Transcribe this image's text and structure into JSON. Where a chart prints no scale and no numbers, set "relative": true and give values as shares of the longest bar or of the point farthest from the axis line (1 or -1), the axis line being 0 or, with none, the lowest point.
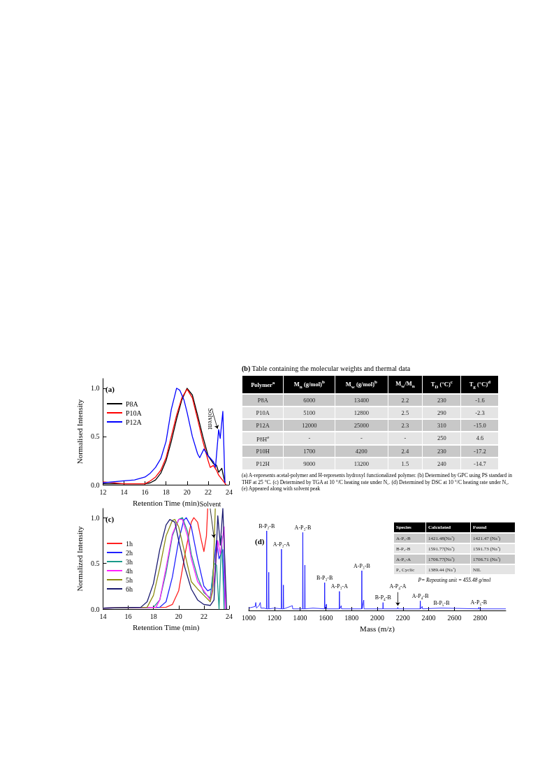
{
  "chart_data": [
    {
      "type": "line",
      "title": "(a)",
      "xlabel": "Retention Time (min)",
      "ylabel": "Normalised Intensity",
      "xlim": [
        12,
        24
      ],
      "xticks": [
        12,
        14,
        16,
        18,
        20,
        22,
        24
      ],
      "ylim": [
        0,
        1.1
      ],
      "yticks": [
        {
          "value": 0,
          "label": "0.0"
        },
        {
          "value": 0.5,
          "label": "0.5"
        },
        {
          "value": 1,
          "label": "1.0"
        }
      ],
      "legend": "top left",
      "marker": "none",
      "series": [
        {
          "name": "P8A",
          "color": "#000000",
          "x": [
            12,
            14,
            16,
            16.5,
            17,
            17.5,
            18,
            18.5,
            19,
            19.5,
            20,
            20.5,
            21,
            21.5,
            22,
            22.5,
            22.8,
            23,
            23.3,
            23.6
          ],
          "values": [
            0.01,
            0.01,
            0.01,
            0.02,
            0.05,
            0.12,
            0.25,
            0.45,
            0.68,
            0.88,
            1.0,
            0.93,
            0.72,
            0.5,
            0.3,
            0.22,
            0.2,
            0.13,
            0.17,
            0.02
          ]
        },
        {
          "name": "P10A",
          "color": "#ff0000",
          "x": [
            12,
            14,
            16,
            16.5,
            17,
            17.5,
            18,
            18.5,
            19,
            19.5,
            20,
            20.5,
            21,
            21.5,
            22,
            22.2,
            22.5,
            22.8,
            23,
            23.5,
            23.7
          ],
          "values": [
            0.03,
            0.01,
            0.01,
            0.04,
            0.08,
            0.15,
            0.28,
            0.5,
            0.72,
            0.9,
            0.99,
            0.9,
            0.68,
            0.45,
            0.25,
            0.18,
            0.2,
            0.15,
            0.1,
            0.03,
            0
          ]
        },
        {
          "name": "P12A",
          "color": "#0000ff",
          "x": [
            12,
            14,
            15,
            16,
            16.5,
            17,
            17.5,
            18,
            18.5,
            19,
            19.3,
            19.7,
            20,
            20.5,
            21,
            21.2,
            21.6,
            22,
            22.5,
            22.7,
            23,
            23.15,
            23.4,
            23.6
          ],
          "values": [
            0.02,
            0.04,
            0.05,
            0.08,
            0.12,
            0.18,
            0.27,
            0.45,
            0.78,
            1.0,
            0.98,
            0.88,
            0.75,
            0.5,
            0.32,
            0.28,
            0.37,
            0.3,
            0.24,
            0.18,
            0.57,
            0.48,
            0.76,
            0.02
          ]
        }
      ],
      "annotations": [
        {
          "text": "Solvent",
          "x": 22.9,
          "y": 0.58
        }
      ]
    },
    {
      "type": "other",
      "title": "(b) Table containing the molecular weights and thermal data",
      "categories": [
        "Polymer$^{a}$",
        "M$_{n}$ (g/mol)$^{b}$",
        "M$_{w}$ (g/mol)$^{b}$",
        "M$_{w}$/M$_{n}$",
        "T$_{D}$ (°C)$^{c}$",
        "T$_{g}$ (°C)$^{d}$"
      ],
      "cell_labels": [
        [
          "P8A",
          "6000",
          "13400",
          "2.2",
          "230",
          "-1.6"
        ],
        [
          "P10A",
          "5100",
          "12800",
          "2.5",
          "290",
          "-2.3"
        ],
        [
          "P12A",
          "12000",
          "25000",
          "2.3",
          "310",
          "-15.0"
        ],
        [
          "P8H$^{e}$",
          "-",
          "-",
          "-",
          "250",
          "4.6"
        ],
        [
          "P10H",
          "1700",
          "4200",
          "2.4",
          "230",
          "-17.2"
        ],
        [
          "P12H",
          "9000",
          "13200",
          "1.5",
          "240",
          "-14.7"
        ]
      ],
      "annotations": [
        "(a) A-represents acetal-polymer and H-represents hydroxyl functionalized polymer. (b) Determined by GPC using PS standard in THF at 25 °C. (c) Determined by TGA at 10 °/C heating rate under N₂. (d) Determined by DSC at 10 °/C heating rate under N₂. (e) Appeared along with solvent peak"
      ]
    },
    {
      "type": "line",
      "title": "(c)",
      "xlabel": "Retention Time (min)",
      "ylabel": "Normalized Intensity",
      "xlim": [
        14,
        24
      ],
      "xticks": [
        14,
        16,
        18,
        20,
        22,
        24
      ],
      "ylim": [
        0,
        1.1
      ],
      "yticks": [
        {
          "value": 0,
          "label": "0.0"
        },
        {
          "value": 0.5,
          "label": "0.5"
        },
        {
          "value": 1,
          "label": "1.0"
        }
      ],
      "legend": "left",
      "marker": "none",
      "series": [
        {
          "name": "1h",
          "color": "#ff2020",
          "x": [
            14,
            19,
            19.5,
            20,
            20.5,
            21,
            21.2,
            21.5,
            21.8,
            22,
            22.2,
            22.3
          ],
          "values": [
            0.01,
            0.02,
            0.05,
            0.2,
            0.6,
            0.95,
            1.0,
            0.95,
            0.75,
            0.63,
            0.8,
            1.1
          ]
        },
        {
          "name": "2h",
          "color": "#2020ff",
          "x": [
            14,
            18.5,
            19,
            19.5,
            20,
            20.4,
            20.6,
            21,
            21.5,
            22,
            22.3,
            22.6,
            22.8,
            23,
            23.2,
            23.5,
            23.7
          ],
          "values": [
            0.01,
            0.02,
            0.08,
            0.35,
            0.75,
            0.97,
            1.0,
            0.9,
            0.55,
            0.25,
            0.2,
            0.22,
            0.5,
            0.75,
            0.55,
            0.65,
            0
          ]
        },
        {
          "name": "3h",
          "color": "#1a9a8a",
          "x": [
            14,
            18,
            18.5,
            19,
            19.5,
            20,
            20.3,
            20.7,
            21,
            21.5,
            22,
            22.5,
            22.8,
            23,
            23.2,
            23.4,
            23.6
          ],
          "values": [
            0.01,
            0.02,
            0.1,
            0.4,
            0.8,
            0.98,
            1.0,
            0.85,
            0.6,
            0.35,
            0.18,
            0.12,
            0.5,
            0.48,
            0,
            0.8,
            0
          ]
        },
        {
          "name": "4h",
          "color": "#ff20ff",
          "x": [
            14,
            18.2,
            18.5,
            19,
            19.5,
            20,
            20.3,
            20.7,
            21,
            21.5,
            22,
            22.5,
            22.8,
            23.1,
            23.3,
            23.6,
            23.7
          ],
          "values": [
            0.01,
            0.02,
            0.1,
            0.45,
            0.82,
            0.98,
            0.98,
            0.8,
            0.55,
            0.3,
            0.2,
            0.1,
            0.3,
            0.75,
            0.6,
            0.9,
            0
          ]
        },
        {
          "name": "5h",
          "color": "#8c8c10",
          "x": [
            14,
            17.5,
            18,
            18.5,
            19,
            19.5,
            19.7,
            20,
            20.5,
            21,
            21.5,
            22,
            22.5,
            22.7,
            22.9
          ],
          "values": [
            0.01,
            0.02,
            0.15,
            0.45,
            0.8,
            0.97,
            0.98,
            0.9,
            0.6,
            0.3,
            0.22,
            0.15,
            0.08,
            0.2,
            1.1
          ]
        },
        {
          "name": "6h",
          "color": "#1a1a70",
          "x": [
            14,
            17,
            17.5,
            18,
            18.5,
            19,
            19.3,
            19.7,
            20,
            20.5,
            21,
            21.5,
            22,
            22.5,
            22.8,
            23,
            23.1,
            23.3,
            23.5,
            23.8
          ],
          "values": [
            0.01,
            0.02,
            0.08,
            0.28,
            0.65,
            0.92,
            0.98,
            0.95,
            0.75,
            0.45,
            0.22,
            0.1,
            0.05,
            0.04,
            0.1,
            0.7,
            1.02,
            0.7,
            1.1,
            0
          ]
        }
      ],
      "annotations": [
        {
          "text": "Solvent",
          "x": 22.8,
          "y": 0.78
        }
      ]
    },
    {
      "type": "line",
      "title": "(d)",
      "xlabel": "Mass (m/z)",
      "relative": true,
      "xlim": [
        1000,
        3000
      ],
      "xticks": [
        1000,
        1200,
        1400,
        1600,
        1800,
        2000,
        2200,
        2400,
        2600,
        2800
      ],
      "marker": "none",
      "series": [
        {
          "color": "#0000ff",
          "x": [
            1000,
            1050,
            1055,
            1060,
            1080,
            1090,
            1095,
            1120,
            1138,
            1140,
            1142,
            1154,
            1156,
            1158,
            1200,
            1253,
            1255,
            1257,
            1268,
            1270,
            1272,
            1340,
            1342,
            1419,
            1421,
            1423,
            1435,
            1437,
            1439,
            1500,
            1589,
            1591,
            1593,
            1605,
            1607,
            1704,
            1706,
            1708,
            1720,
            1722,
            1878,
            1880,
            1882,
            1895,
            1897,
            2043,
            2045,
            2047,
            2158,
            2160,
            2162,
            2333,
            2335,
            2337,
            2350,
            2352,
            2500,
            2788,
            2790,
            2792,
            3000
          ],
          "values": [
            0.03,
            0.05,
            0.1,
            0.03,
            0.06,
            0.1,
            0.03,
            0.03,
            0.02,
            1.0,
            0.02,
            0.02,
            0.48,
            0.02,
            0.03,
            0.02,
            0.77,
            0.02,
            0.02,
            0.32,
            0.02,
            0.06,
            0.02,
            0.02,
            0.98,
            0.02,
            0.02,
            0.57,
            0.02,
            0.03,
            0.02,
            0.35,
            0.02,
            0.08,
            0.02,
            0.02,
            0.24,
            0.02,
            0.06,
            0.02,
            0.02,
            0.5,
            0.02,
            0.13,
            0.02,
            0.02,
            0.1,
            0.02,
            0.02,
            0.04,
            0.02,
            0.02,
            0.12,
            0.02,
            0.05,
            0.02,
            0.03,
            0.02,
            0.04,
            0.02,
            0.02
          ]
        }
      ],
      "annotations": [
        {
          "text": "B-P₂-B",
          "x": 1140,
          "y": 1.0
        },
        {
          "text": "A-P₂-A",
          "x": 1255,
          "y": 0.77
        },
        {
          "text": "A-P₃-B",
          "x": 1421,
          "y": 0.98
        },
        {
          "text": "B-P₃-B",
          "x": 1591,
          "y": 0.35
        },
        {
          "text": "A-P₃-A",
          "x": 1706,
          "y": 0.24
        },
        {
          "text": "A-P₃-B",
          "x": 1880,
          "y": 0.5
        },
        {
          "text": "B-P₄-B",
          "x": 2045,
          "y": 0.1
        },
        {
          "text": "A-P₄-A",
          "x": 2160,
          "y": 0.04
        },
        {
          "text": "A-P₄-B",
          "x": 2335,
          "y": 0.12
        },
        {
          "text": "B-P₅-B",
          "x": 2500,
          "y": 0.03
        },
        {
          "text": "A-P₅-B",
          "x": 2790,
          "y": 0.04
        }
      ]
    },
    {
      "type": "other",
      "categories": [
        "Species",
        "Calculated",
        "Found"
      ],
      "cell_labels": [
        [
          "A-P₃-B",
          "1421.48(Na⁺)",
          "1421.47 (Na⁺)"
        ],
        [
          "B-P₃-B",
          "1591.77(Na⁺)",
          "1591.73 (Na⁺)"
        ],
        [
          "A-P₃-A",
          "1706.77(Na⁺)",
          "1706.71 (Na⁺)"
        ],
        [
          "P₃ Cyclic",
          "1389.44 (Na⁺)",
          "NIL"
        ]
      ],
      "annotations": [
        "P= Repeating unit = 455.48 g/mol"
      ]
    }
  ]
}
